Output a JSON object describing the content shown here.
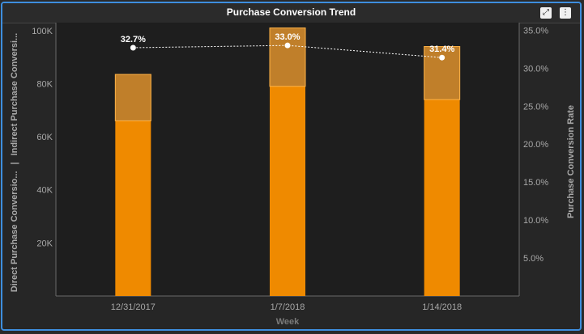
{
  "widget": {
    "title": "Purchase Conversion Trend",
    "expand_icon": "expand-icon",
    "menu_icon": "more-vertical-icon"
  },
  "colors": {
    "direct_bar": "#ef8a00",
    "indirect_bar": "#c07f2a",
    "bar_outline": "#ffb347",
    "line": "#ffffff",
    "plot_bg": "#1e1e1e",
    "axis_text": "#a8a8a8",
    "border_accent": "#3e8ede"
  },
  "chart_data": {
    "type": "bar",
    "title": "Purchase Conversion Trend",
    "categories": [
      "12/31/2017",
      "1/7/2018",
      "1/14/2018"
    ],
    "xlabel": "Week",
    "ylabel_left_lines": [
      "Direct Purchase Conversio...",
      "|",
      "Indirect Purchase Conversi..."
    ],
    "ylabel_right": "Purchase Conversion Rate",
    "ylim_left": [
      0,
      103000
    ],
    "ylim_right": [
      0,
      0.36
    ],
    "yticks_left": [
      20000,
      40000,
      60000,
      80000,
      100000
    ],
    "ytick_labels_left": [
      "20K",
      "40K",
      "60K",
      "80K",
      "100K"
    ],
    "yticks_right": [
      0.05,
      0.1,
      0.15,
      0.2,
      0.25,
      0.3,
      0.35
    ],
    "ytick_labels_right": [
      "5.0%",
      "10.0%",
      "15.0%",
      "20.0%",
      "25.0%",
      "30.0%",
      "35.0%"
    ],
    "grid": false,
    "series": [
      {
        "name": "Direct Purchase Conversio...",
        "stacked": true,
        "values": [
          66000,
          79000,
          74000
        ]
      },
      {
        "name": "Indirect Purchase Conversi...",
        "stacked": true,
        "values": [
          17500,
          22000,
          20000
        ]
      },
      {
        "name": "Purchase Conversion Rate",
        "type": "line",
        "axis": "right",
        "values": [
          0.327,
          0.33,
          0.314
        ],
        "labels": [
          "32.7%",
          "33.0%",
          "31.4%"
        ]
      }
    ]
  }
}
